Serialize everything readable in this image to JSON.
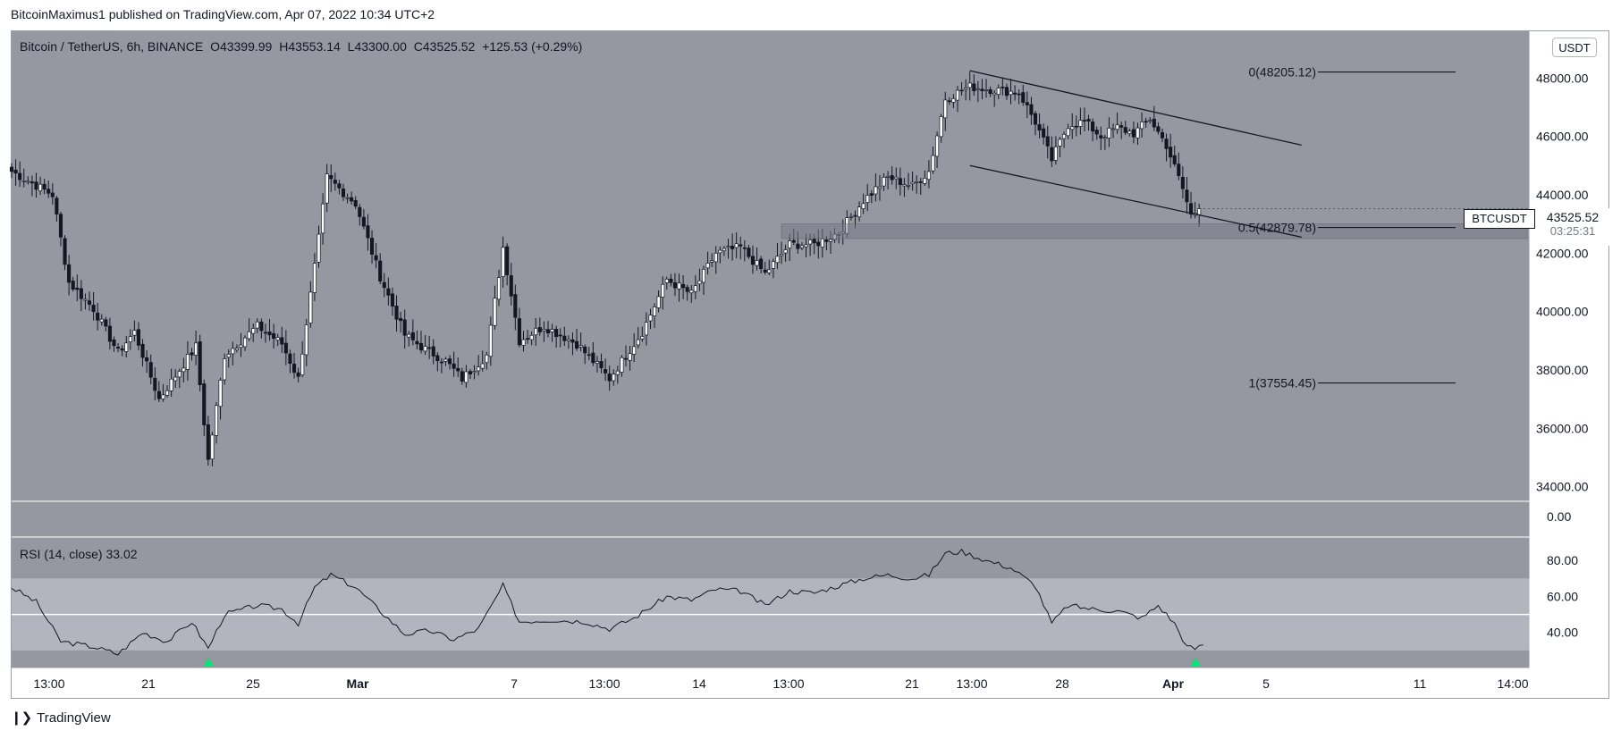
{
  "attribution": "BitcoinMaximus1 published on TradingView.com, Apr 07, 2022 10:34 UTC+2",
  "legend": {
    "symbol": "Bitcoin / TetherUS, 6h, BINANCE",
    "open_label": "O",
    "open": "43399.99",
    "high_label": "H",
    "high": "43553.14",
    "low_label": "L",
    "low": "43300.00",
    "close_label": "C",
    "close": "43525.52",
    "change": "+125.53 (+0.29%)"
  },
  "currency": "USDT",
  "ticker_tag": "BTCUSDT",
  "last_price": "43525.52",
  "countdown": "03:25:31",
  "rsi_legend": {
    "label": "RSI (14, close)",
    "value": "33.02"
  },
  "footer_brand": "TradingView",
  "colors": {
    "background": "#9598a1",
    "rsi_band": "#b2b5be",
    "candle_up": "#ffffff",
    "candle_down": "#131722",
    "line": "#131722",
    "signal": "#00e676",
    "support_zone": "#787b86"
  },
  "chart_data": [
    {
      "type": "candlestick",
      "title": "Bitcoin / TetherUS, 6h, BINANCE",
      "ylim": [
        33500,
        49600
      ],
      "y_ticks": [
        "48000.00",
        "46000.00",
        "44000.00",
        "42000.00",
        "40000.00",
        "38000.00",
        "36000.00",
        "34000.00"
      ],
      "x_ticks": [
        "13:00",
        "21",
        "25",
        "Mar",
        "7",
        "13:00",
        "14",
        "13:00",
        "21",
        "13:00",
        "28",
        "Apr",
        "5",
        "11",
        "14:00"
      ],
      "price_anchors": [
        {
          "i": 0,
          "p": 44800
        },
        {
          "i": 10,
          "p": 44000
        },
        {
          "i": 14,
          "p": 41000
        },
        {
          "i": 20,
          "p": 40100
        },
        {
          "i": 26,
          "p": 38600
        },
        {
          "i": 30,
          "p": 39300
        },
        {
          "i": 36,
          "p": 37000
        },
        {
          "i": 40,
          "p": 37800
        },
        {
          "i": 45,
          "p": 38800
        },
        {
          "i": 48,
          "p": 34900
        },
        {
          "i": 52,
          "p": 38500
        },
        {
          "i": 60,
          "p": 39500
        },
        {
          "i": 66,
          "p": 38900
        },
        {
          "i": 70,
          "p": 37700
        },
        {
          "i": 75,
          "p": 42500
        },
        {
          "i": 77,
          "p": 44600
        },
        {
          "i": 84,
          "p": 43700
        },
        {
          "i": 90,
          "p": 41200
        },
        {
          "i": 96,
          "p": 39200
        },
        {
          "i": 100,
          "p": 38800
        },
        {
          "i": 106,
          "p": 38300
        },
        {
          "i": 110,
          "p": 37700
        },
        {
          "i": 116,
          "p": 38500
        },
        {
          "i": 120,
          "p": 42200
        },
        {
          "i": 124,
          "p": 39000
        },
        {
          "i": 130,
          "p": 39500
        },
        {
          "i": 138,
          "p": 38900
        },
        {
          "i": 146,
          "p": 37700
        },
        {
          "i": 154,
          "p": 39300
        },
        {
          "i": 160,
          "p": 41100
        },
        {
          "i": 166,
          "p": 40600
        },
        {
          "i": 172,
          "p": 42000
        },
        {
          "i": 178,
          "p": 42200
        },
        {
          "i": 184,
          "p": 41300
        },
        {
          "i": 190,
          "p": 42300
        },
        {
          "i": 196,
          "p": 42300
        },
        {
          "i": 202,
          "p": 42700
        },
        {
          "i": 208,
          "p": 43800
        },
        {
          "i": 214,
          "p": 44600
        },
        {
          "i": 220,
          "p": 44300
        },
        {
          "i": 224,
          "p": 44800
        },
        {
          "i": 228,
          "p": 47300
        },
        {
          "i": 234,
          "p": 47700
        },
        {
          "i": 240,
          "p": 47600
        },
        {
          "i": 246,
          "p": 47500
        },
        {
          "i": 250,
          "p": 46500
        },
        {
          "i": 254,
          "p": 45200
        },
        {
          "i": 258,
          "p": 46400
        },
        {
          "i": 262,
          "p": 46500
        },
        {
          "i": 266,
          "p": 46000
        },
        {
          "i": 270,
          "p": 46300
        },
        {
          "i": 274,
          "p": 46100
        },
        {
          "i": 278,
          "p": 46600
        },
        {
          "i": 282,
          "p": 45700
        },
        {
          "i": 286,
          "p": 44200
        },
        {
          "i": 288,
          "p": 43300
        },
        {
          "i": 290,
          "p": 43526
        }
      ],
      "fibonacci": [
        {
          "level": "0",
          "price": 48205.12,
          "label": "0(48205.12)"
        },
        {
          "level": "0.5",
          "price": 42879.78,
          "label": "0.5(42879.78)"
        },
        {
          "level": "1",
          "price": 37554.45,
          "label": "1(37554.45)"
        }
      ],
      "support_zone": [
        42500,
        43000
      ],
      "channel": {
        "upper": [
          {
            "i": 234,
            "p": 48250
          },
          {
            "i": 315,
            "p": 45700
          }
        ],
        "lower": [
          {
            "i": 234,
            "p": 45000
          },
          {
            "i": 315,
            "p": 42550
          }
        ]
      }
    },
    {
      "type": "line",
      "title": "RSI (14, close)",
      "ylim": [
        20,
        93
      ],
      "y_ticks": [
        "80.00",
        "60.00",
        "40.00",
        "0.00"
      ],
      "band": [
        30,
        70
      ],
      "midline": 50,
      "rsi_anchors": [
        {
          "i": 0,
          "v": 65
        },
        {
          "i": 6,
          "v": 57
        },
        {
          "i": 12,
          "v": 35
        },
        {
          "i": 20,
          "v": 32
        },
        {
          "i": 26,
          "v": 28
        },
        {
          "i": 32,
          "v": 40
        },
        {
          "i": 38,
          "v": 35
        },
        {
          "i": 44,
          "v": 46
        },
        {
          "i": 48,
          "v": 31
        },
        {
          "i": 52,
          "v": 50
        },
        {
          "i": 60,
          "v": 55
        },
        {
          "i": 66,
          "v": 53
        },
        {
          "i": 70,
          "v": 45
        },
        {
          "i": 74,
          "v": 65
        },
        {
          "i": 78,
          "v": 72
        },
        {
          "i": 84,
          "v": 65
        },
        {
          "i": 90,
          "v": 52
        },
        {
          "i": 96,
          "v": 39
        },
        {
          "i": 102,
          "v": 41
        },
        {
          "i": 108,
          "v": 36
        },
        {
          "i": 114,
          "v": 42
        },
        {
          "i": 120,
          "v": 66
        },
        {
          "i": 124,
          "v": 46
        },
        {
          "i": 132,
          "v": 47
        },
        {
          "i": 140,
          "v": 46
        },
        {
          "i": 146,
          "v": 42
        },
        {
          "i": 152,
          "v": 48
        },
        {
          "i": 160,
          "v": 60
        },
        {
          "i": 166,
          "v": 58
        },
        {
          "i": 172,
          "v": 64
        },
        {
          "i": 178,
          "v": 63
        },
        {
          "i": 184,
          "v": 55
        },
        {
          "i": 190,
          "v": 63
        },
        {
          "i": 196,
          "v": 62
        },
        {
          "i": 202,
          "v": 66
        },
        {
          "i": 208,
          "v": 70
        },
        {
          "i": 214,
          "v": 72
        },
        {
          "i": 220,
          "v": 70
        },
        {
          "i": 224,
          "v": 72
        },
        {
          "i": 228,
          "v": 84
        },
        {
          "i": 232,
          "v": 85
        },
        {
          "i": 238,
          "v": 80
        },
        {
          "i": 244,
          "v": 76
        },
        {
          "i": 250,
          "v": 66
        },
        {
          "i": 254,
          "v": 45
        },
        {
          "i": 258,
          "v": 55
        },
        {
          "i": 264,
          "v": 53
        },
        {
          "i": 270,
          "v": 52
        },
        {
          "i": 276,
          "v": 48
        },
        {
          "i": 280,
          "v": 55
        },
        {
          "i": 284,
          "v": 45
        },
        {
          "i": 287,
          "v": 32
        },
        {
          "i": 289,
          "v": 31
        },
        {
          "i": 291,
          "v": 33
        }
      ],
      "signals": [
        {
          "i": 48,
          "label": "bullish"
        },
        {
          "i": 289,
          "label": "bullish"
        }
      ]
    }
  ]
}
